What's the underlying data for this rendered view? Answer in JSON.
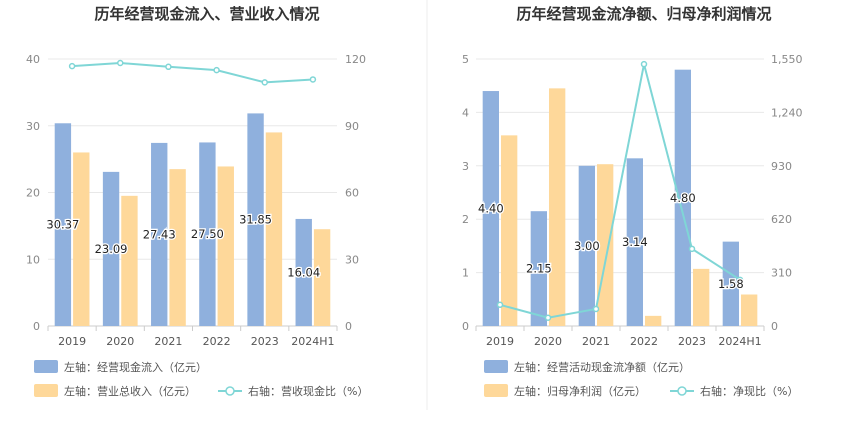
{
  "colors": {
    "bar_blue": "#8fb0dd",
    "bar_orange": "#fed89a",
    "line_teal": "#7fd6d6"
  },
  "chart_data": [
    {
      "type": "bar",
      "title": "历年经营现金流入、营业收入情况",
      "categories": [
        "2019",
        "2020",
        "2021",
        "2022",
        "2023",
        "2024H1"
      ],
      "left_axis": {
        "ylim": [
          0,
          40
        ],
        "ticks": [
          "0",
          "10",
          "20",
          "30",
          "40"
        ],
        "tick_values": [
          0,
          10,
          20,
          30,
          40
        ]
      },
      "right_axis": {
        "ylim": [
          0,
          120
        ],
        "ticks": [
          "0",
          "30",
          "60",
          "90",
          "120"
        ],
        "tick_values": [
          0,
          30,
          60,
          90,
          120
        ]
      },
      "series": [
        {
          "name": "左轴：经营现金流入（亿元）",
          "kind": "bar",
          "axis": "left",
          "color": "#8fb0dd",
          "values": [
            30.37,
            23.09,
            27.43,
            27.5,
            31.85,
            16.04
          ],
          "labels": [
            "30.37",
            "23.09",
            "27.43",
            "27.50",
            "31.85",
            "16.04"
          ]
        },
        {
          "name": "左轴：营业总收入（亿元）",
          "kind": "bar",
          "axis": "left",
          "color": "#fed89a",
          "values": [
            26.0,
            19.5,
            23.5,
            23.9,
            29.0,
            14.5
          ]
        },
        {
          "name": "右轴：营收现金比（%）",
          "kind": "line",
          "axis": "right",
          "color": "#7fd6d6",
          "values": [
            116.8,
            118.2,
            116.5,
            115.0,
            109.5,
            110.8
          ]
        }
      ],
      "legend": [
        "左轴：经营现金流入（亿元）",
        "左轴：营业总收入（亿元）",
        "右轴：营收现金比（%）"
      ]
    },
    {
      "type": "bar",
      "title": "历年经营现金流净额、归母净利润情况",
      "categories": [
        "2019",
        "2020",
        "2021",
        "2022",
        "2023",
        "2024H1"
      ],
      "left_axis": {
        "ylim": [
          0,
          5
        ],
        "ticks": [
          "0",
          "1",
          "2",
          "3",
          "4",
          "5"
        ],
        "tick_values": [
          0,
          1,
          2,
          3,
          4,
          5
        ]
      },
      "right_axis": {
        "ylim": [
          0,
          1550
        ],
        "ticks": [
          "0",
          "310",
          "620",
          "930",
          "1,240",
          "1,550"
        ],
        "tick_values": [
          0,
          310,
          620,
          930,
          1240,
          1550
        ]
      },
      "series": [
        {
          "name": "左轴：经营活动现金流净额（亿元）",
          "kind": "bar",
          "axis": "left",
          "color": "#8fb0dd",
          "values": [
            4.4,
            2.15,
            3.0,
            3.14,
            4.8,
            1.58
          ],
          "labels": [
            "4.40",
            "2.15",
            "3.00",
            "3.14",
            "4.80",
            "1.58"
          ]
        },
        {
          "name": "左轴：归母净利润（亿元）",
          "kind": "bar",
          "axis": "left",
          "color": "#fed89a",
          "values": [
            3.57,
            4.45,
            3.03,
            0.19,
            1.07,
            0.59
          ]
        },
        {
          "name": "右轴：净现比（%）",
          "kind": "line",
          "axis": "right",
          "color": "#7fd6d6",
          "values": [
            123,
            48,
            99,
            1520,
            448,
            268
          ]
        }
      ],
      "legend": [
        "左轴：经营活动现金流净额（亿元）",
        "左轴：归母净利润（亿元）",
        "右轴：净现比（%）"
      ]
    }
  ]
}
